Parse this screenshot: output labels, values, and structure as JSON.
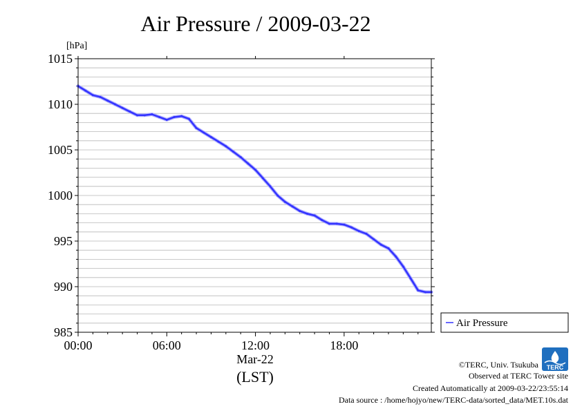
{
  "chart_data": {
    "type": "line",
    "title": "Air Pressure / 2009-03-22",
    "ylabel": "[hPa]",
    "xlabel": "(LST)",
    "date_label": "Mar-22",
    "ylim": [
      985,
      1015
    ],
    "xlim_hours": [
      0,
      23.9
    ],
    "y_ticks": [
      "1015",
      "1010",
      "1005",
      "1000",
      "995",
      "990",
      "985"
    ],
    "x_ticks": [
      "00:00",
      "06:00",
      "12:00",
      "18:00"
    ],
    "grid": true,
    "legend_position": "right",
    "series": [
      {
        "name": "Air Pressure",
        "color": "#3333ff",
        "x_hours": [
          0.0,
          0.5,
          1.0,
          1.5,
          2.0,
          2.5,
          3.0,
          3.5,
          4.0,
          4.5,
          5.0,
          5.5,
          6.0,
          6.5,
          7.0,
          7.5,
          8.0,
          8.5,
          9.0,
          9.5,
          10.0,
          10.5,
          11.0,
          11.5,
          12.0,
          12.5,
          13.0,
          13.5,
          14.0,
          14.5,
          15.0,
          15.5,
          16.0,
          16.5,
          17.0,
          17.5,
          18.0,
          18.5,
          19.0,
          19.5,
          20.0,
          20.5,
          21.0,
          21.5,
          22.0,
          22.5,
          23.0,
          23.5,
          23.9
        ],
        "values": [
          1012.0,
          1011.5,
          1011.0,
          1010.8,
          1010.4,
          1010.0,
          1009.6,
          1009.2,
          1008.8,
          1008.8,
          1008.9,
          1008.6,
          1008.3,
          1008.6,
          1008.7,
          1008.4,
          1007.4,
          1006.9,
          1006.4,
          1005.9,
          1005.4,
          1004.8,
          1004.2,
          1003.5,
          1002.8,
          1001.9,
          1001.0,
          1000.0,
          999.3,
          998.8,
          998.3,
          998.0,
          997.8,
          997.3,
          996.9,
          996.9,
          996.8,
          996.5,
          996.1,
          995.8,
          995.2,
          994.6,
          994.2,
          993.3,
          992.2,
          990.9,
          989.6,
          989.4,
          989.4
        ]
      }
    ]
  },
  "footer": {
    "copyright": "©TERC, Univ. Tsukuba",
    "observed": "Observed at TERC Tower site",
    "created": "Created Automatically at 2009-03-22/23:55:14",
    "source": "Data source : /home/hojyo/new/TERC-data/sorted_data/MET.10s.dat",
    "logo_text": "TERC"
  }
}
